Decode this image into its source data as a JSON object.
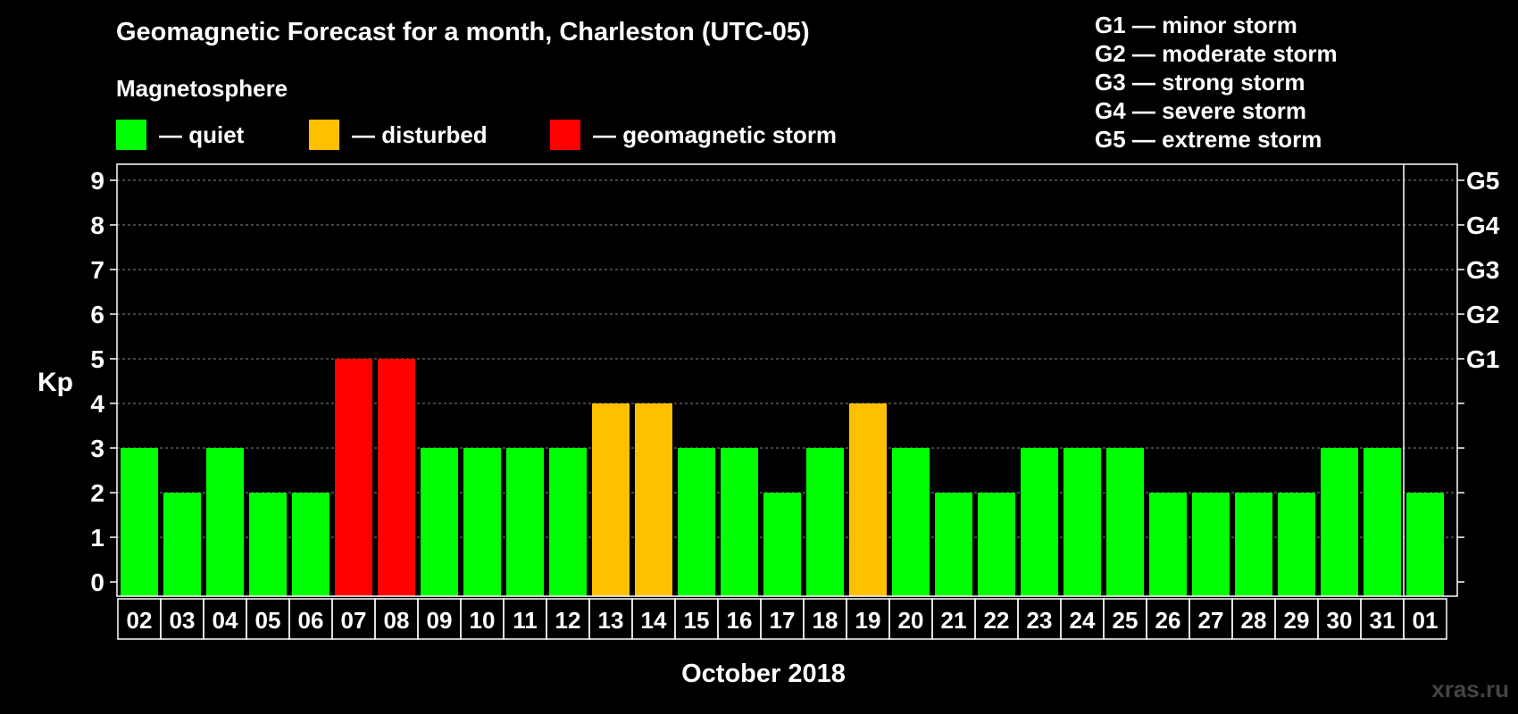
{
  "title": "Geomagnetic Forecast for a month, Charleston (UTC-05)",
  "subtitle": "Magnetosphere",
  "legend": {
    "quiet": "— quiet",
    "disturbed": "— disturbed",
    "storm": "— geomagnetic storm"
  },
  "storm_levels": [
    "G1 — minor storm",
    "G2 — moderate storm",
    "G3 — strong storm",
    "G4 — severe storm",
    "G5 — extreme storm"
  ],
  "watermark": "xras.ru",
  "colors": {
    "quiet": "#00ff00",
    "disturbed": "#ffc000",
    "storm": "#ff0000",
    "background": "#000000",
    "foreground": "#ffffff"
  },
  "chart_data": {
    "type": "bar",
    "title": "Geomagnetic Forecast for a month, Charleston (UTC-05)",
    "xlabel": "October 2018",
    "ylabel": "Kp",
    "ylim": [
      0,
      9
    ],
    "yticks": [
      "0",
      "1",
      "2",
      "3",
      "4",
      "5",
      "6",
      "7",
      "8",
      "9"
    ],
    "right_axis_labels": [
      {
        "value": 5,
        "label": "G1"
      },
      {
        "value": 6,
        "label": "G2"
      },
      {
        "value": 7,
        "label": "G3"
      },
      {
        "value": 8,
        "label": "G4"
      },
      {
        "value": 9,
        "label": "G5"
      }
    ],
    "categories": [
      "02",
      "03",
      "04",
      "05",
      "06",
      "07",
      "08",
      "09",
      "10",
      "11",
      "12",
      "13",
      "14",
      "15",
      "16",
      "17",
      "18",
      "19",
      "20",
      "21",
      "22",
      "23",
      "24",
      "25",
      "26",
      "27",
      "28",
      "29",
      "30",
      "31",
      "01"
    ],
    "values": [
      3,
      2,
      3,
      2,
      2,
      5,
      5,
      3,
      3,
      3,
      3,
      4,
      4,
      3,
      3,
      2,
      3,
      4,
      3,
      2,
      2,
      3,
      3,
      3,
      2,
      2,
      2,
      2,
      3,
      3,
      2
    ],
    "status": [
      "quiet",
      "quiet",
      "quiet",
      "quiet",
      "quiet",
      "storm",
      "storm",
      "quiet",
      "quiet",
      "quiet",
      "quiet",
      "disturbed",
      "disturbed",
      "quiet",
      "quiet",
      "quiet",
      "quiet",
      "disturbed",
      "quiet",
      "quiet",
      "quiet",
      "quiet",
      "quiet",
      "quiet",
      "quiet",
      "quiet",
      "quiet",
      "quiet",
      "quiet",
      "quiet",
      "quiet"
    ],
    "month_separator_after_index": 29
  }
}
